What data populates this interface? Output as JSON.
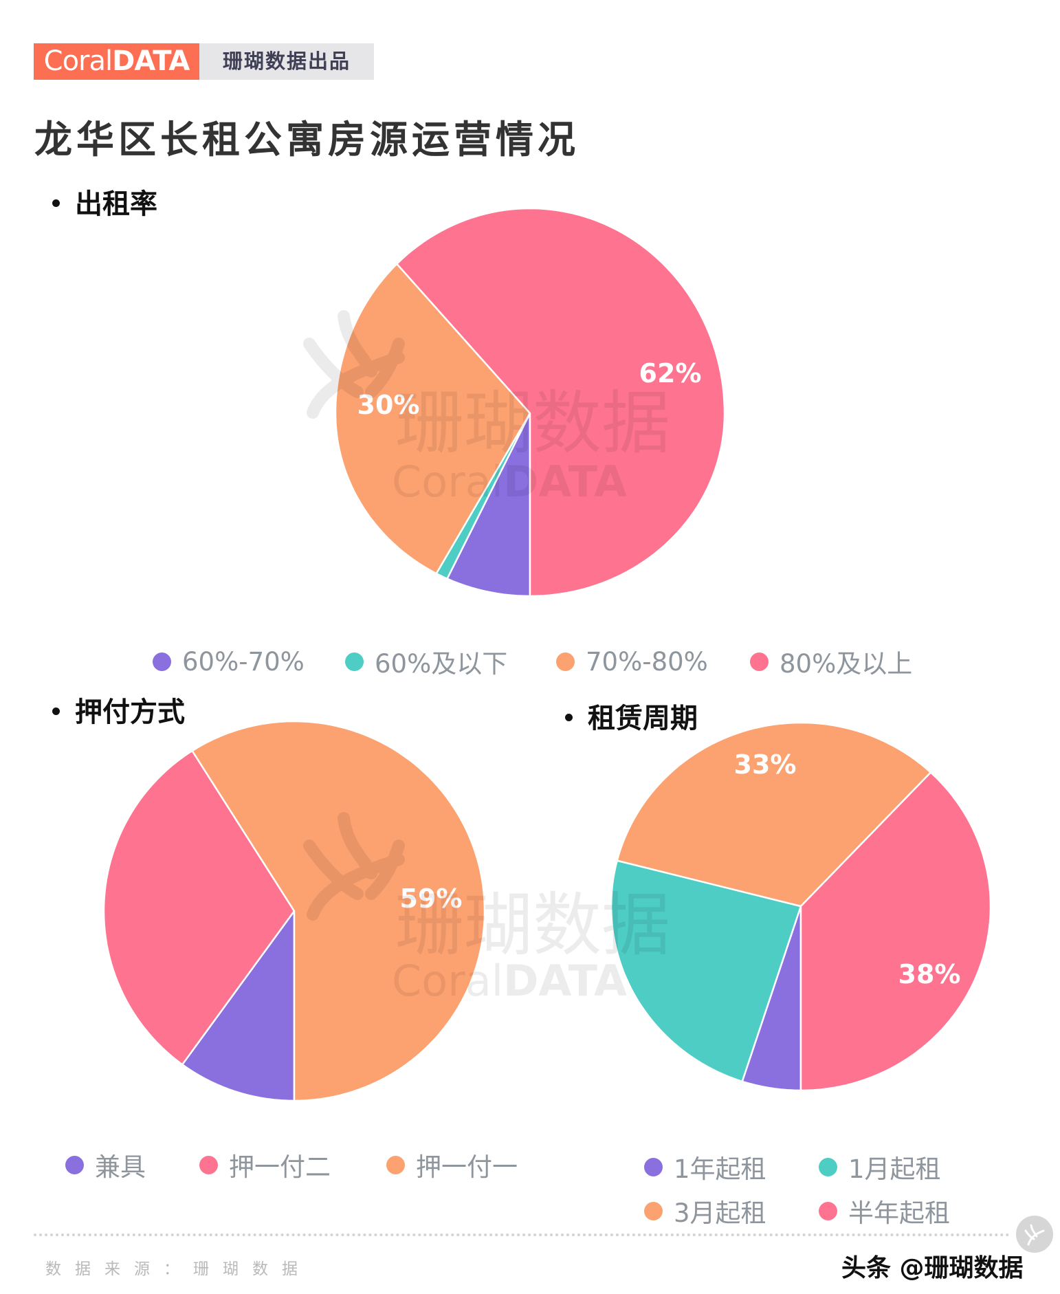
{
  "header": {
    "logo_light": "Coral",
    "logo_bold": "DATA",
    "logo_tagline": "珊瑚数据出品",
    "logo_color": "#fd6f52",
    "title": "龙华区长租公寓房源运营情况"
  },
  "colors": {
    "purple": "#8a6fdf",
    "teal": "#4ecdc4",
    "orange": "#fca170",
    "pink": "#fe7490"
  },
  "chart_data": [
    {
      "type": "pie",
      "title": "出租率",
      "start_angle": "bottom, clockwise",
      "categories": [
        "60%-70%",
        "60%及以下",
        "70%-80%",
        "80%及以上"
      ],
      "values": [
        7,
        1,
        30,
        62
      ],
      "colors": [
        "#8a6fdf",
        "#4ecdc4",
        "#fca170",
        "#fe7490"
      ],
      "data_labels": [
        "",
        "",
        "30%",
        "62%"
      ],
      "legend_position": "bottom"
    },
    {
      "type": "pie",
      "title": "押付方式",
      "start_angle": "bottom, clockwise",
      "categories": [
        "兼具",
        "押一付二",
        "押一付一"
      ],
      "values": [
        10,
        31,
        59
      ],
      "colors": [
        "#8a6fdf",
        "#fe7490",
        "#fca170"
      ],
      "data_labels": [
        "",
        "",
        "59%"
      ],
      "legend_position": "bottom"
    },
    {
      "type": "pie",
      "title": "租赁周期",
      "start_angle": "bottom, clockwise",
      "categories": [
        "1年起租",
        "1月起租",
        "3月起租",
        "半年起租"
      ],
      "values": [
        5,
        24,
        33,
        38
      ],
      "colors": [
        "#8a6fdf",
        "#4ecdc4",
        "#fca170",
        "#fe7490"
      ],
      "data_labels": [
        "",
        "",
        "33%",
        "38%"
      ],
      "legend_position": "bottom"
    }
  ],
  "sections": {
    "occupancy": {
      "title": "出租率"
    },
    "payment": {
      "title": "押付方式"
    },
    "lease": {
      "title": "租赁周期"
    }
  },
  "legends": {
    "occupancy": [
      {
        "label": "60%-70%",
        "color": "#8a6fdf"
      },
      {
        "label": "60%及以下",
        "color": "#4ecdc4"
      },
      {
        "label": "70%-80%",
        "color": "#fca170"
      },
      {
        "label": "80%及以上",
        "color": "#fe7490"
      }
    ],
    "payment": [
      {
        "label": "兼具",
        "color": "#8a6fdf"
      },
      {
        "label": "押一付二",
        "color": "#fe7490"
      },
      {
        "label": "押一付一",
        "color": "#fca170"
      }
    ],
    "lease": [
      {
        "label": "1年起租",
        "color": "#8a6fdf"
      },
      {
        "label": "1月起租",
        "color": "#4ecdc4"
      },
      {
        "label": "3月起租",
        "color": "#fca170"
      },
      {
        "label": "半年起租",
        "color": "#fe7490"
      }
    ]
  },
  "watermark": {
    "cn": "珊瑚数据",
    "en_light": "Coral",
    "en_bold": "DATA"
  },
  "footer": {
    "source": "数据来源：珊瑚数据",
    "credit": "头条 @珊瑚数据"
  }
}
